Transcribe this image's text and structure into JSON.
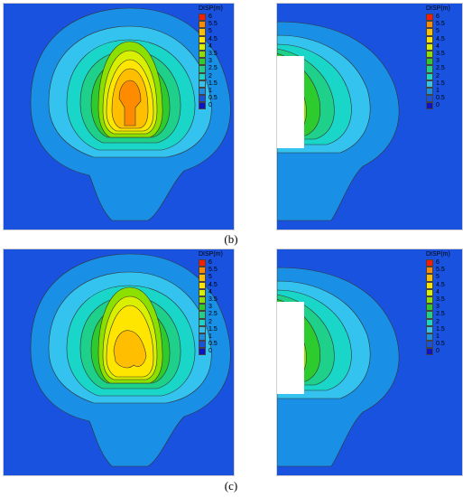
{
  "legend": {
    "title": "DISP(m)",
    "levels": [
      "6",
      "5.5",
      "5",
      "4.5",
      "4",
      "3.5",
      "3",
      "2.5",
      "2",
      "1.5",
      "1",
      "0.5",
      "0"
    ],
    "colors": [
      "#ff1a00",
      "#ff8c00",
      "#ffbf00",
      "#ffe600",
      "#d8f000",
      "#8ce000",
      "#2ecb2e",
      "#1ed08a",
      "#19d6c8",
      "#33c3ee",
      "#1a8fe6",
      "#1a52e0",
      "#0d14c8"
    ]
  },
  "captions": {
    "b": "(b)",
    "c": "(c)"
  },
  "colors": {
    "background": "#1a52e0"
  }
}
